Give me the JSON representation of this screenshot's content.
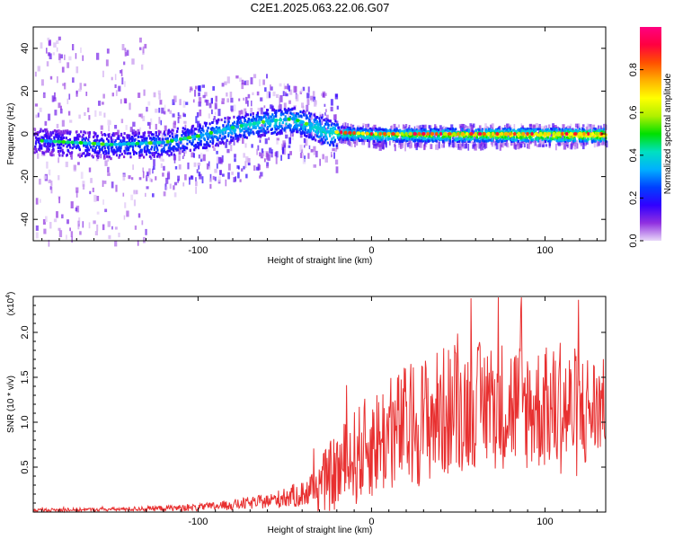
{
  "title": "C2E1.2025.063.22.06.G07",
  "chart_data": [
    {
      "type": "heatmap",
      "xlabel": "Height of straight line (km)",
      "ylabel": "Frequency (Hz)",
      "xlim": [
        -195,
        135
      ],
      "ylim": [
        -50,
        50
      ],
      "xticks": [
        -100,
        0,
        100
      ],
      "yticks": [
        -40,
        -20,
        0,
        20,
        40
      ],
      "colorbar": {
        "label": "Normalized spectral amplitude",
        "range": [
          0,
          1
        ],
        "ticks": [
          "0.0",
          "0.2",
          "0.4",
          "0.6",
          "0.8"
        ],
        "colors": [
          "#e8d8f8",
          "#9030e0",
          "#3000ff",
          "#0040ff",
          "#00b0ff",
          "#00e0c0",
          "#00e000",
          "#b0f000",
          "#ffff00",
          "#ffb000",
          "#ff5000",
          "#ff0040",
          "#ff0080"
        ]
      },
      "ridge": {
        "description_points": [
          {
            "x": -195,
            "y": -3
          },
          {
            "x": -150,
            "y": -5
          },
          {
            "x": -120,
            "y": -4
          },
          {
            "x": -100,
            "y": -1
          },
          {
            "x": -80,
            "y": 3
          },
          {
            "x": -60,
            "y": 6
          },
          {
            "x": -45,
            "y": 7
          },
          {
            "x": -35,
            "y": 4
          },
          {
            "x": -25,
            "y": 1
          },
          {
            "x": 0,
            "y": 0
          },
          {
            "x": 135,
            "y": 0
          }
        ]
      }
    },
    {
      "type": "line",
      "xlabel": "Height of straight line (km)",
      "ylabel": "SNR (10 * v/v)",
      "yscale_label": "(x10",
      "yscale_exp": "4",
      "xlim": [
        -195,
        135
      ],
      "ylim": [
        0,
        2.4
      ],
      "xticks": [
        -100,
        0,
        100
      ],
      "yticks": [
        "0.5",
        "1.0",
        "1.5",
        "2.0"
      ],
      "ytick_values": [
        0.5,
        1.0,
        1.5,
        2.0
      ],
      "color": "#e83030",
      "envelope": {
        "x": [
          -195,
          -150,
          -100,
          -80,
          -60,
          -40,
          -30,
          -20,
          -10,
          0,
          20,
          40,
          60,
          80,
          100,
          120,
          135
        ],
        "mean": [
          0.02,
          0.03,
          0.05,
          0.08,
          0.12,
          0.2,
          0.3,
          0.45,
          0.6,
          0.75,
          0.95,
          1.1,
          1.2,
          1.2,
          1.15,
          1.1,
          1.2
        ],
        "amplitude": [
          0.02,
          0.02,
          0.04,
          0.06,
          0.08,
          0.15,
          0.3,
          0.45,
          0.55,
          0.6,
          0.7,
          0.75,
          0.7,
          0.75,
          0.7,
          0.75,
          0.5
        ]
      }
    }
  ]
}
